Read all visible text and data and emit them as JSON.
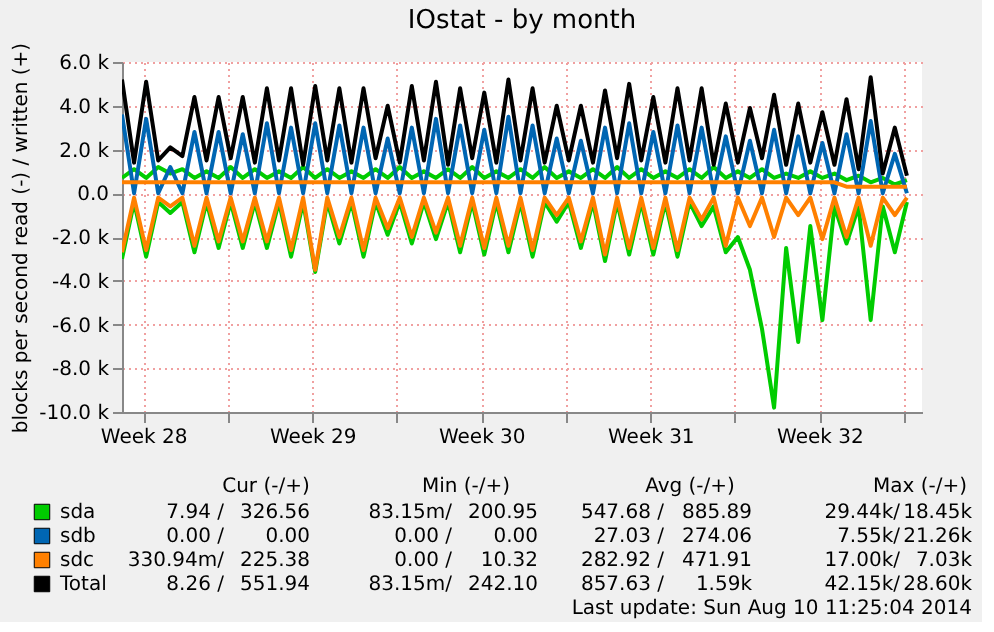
{
  "chart_data": {
    "type": "line",
    "title": "IOstat - by month",
    "ylabel": "blocks per second read (-) / written (+)",
    "x": [
      "2014-07-09T15:00",
      "2014-07-10T03:00",
      "2014-07-10T15:00",
      "2014-07-11T03:00",
      "2014-07-11T15:00",
      "2014-07-12T03:00",
      "2014-07-12T15:00",
      "2014-07-13T03:00",
      "2014-07-13T15:00",
      "2014-07-14T03:00",
      "2014-07-14T15:00",
      "2014-07-15T03:00",
      "2014-07-15T15:00",
      "2014-07-16T03:00",
      "2014-07-16T15:00",
      "2014-07-17T03:00",
      "2014-07-17T15:00",
      "2014-07-18T03:00",
      "2014-07-18T15:00",
      "2014-07-19T03:00",
      "2014-07-19T15:00",
      "2014-07-20T03:00",
      "2014-07-20T15:00",
      "2014-07-21T03:00",
      "2014-07-21T15:00",
      "2014-07-22T03:00",
      "2014-07-22T15:00",
      "2014-07-23T03:00",
      "2014-07-23T15:00",
      "2014-07-24T03:00",
      "2014-07-24T15:00",
      "2014-07-25T03:00",
      "2014-07-25T15:00",
      "2014-07-26T03:00",
      "2014-07-26T15:00",
      "2014-07-27T03:00",
      "2014-07-27T15:00",
      "2014-07-28T03:00",
      "2014-07-28T15:00",
      "2014-07-29T03:00",
      "2014-07-29T15:00",
      "2014-07-30T03:00",
      "2014-07-30T15:00",
      "2014-07-31T03:00",
      "2014-07-31T15:00",
      "2014-08-01T03:00",
      "2014-08-01T15:00",
      "2014-08-02T03:00",
      "2014-08-02T15:00",
      "2014-08-03T03:00",
      "2014-08-03T15:00",
      "2014-08-04T03:00",
      "2014-08-04T15:00",
      "2014-08-05T03:00",
      "2014-08-05T15:00",
      "2014-08-06T03:00",
      "2014-08-06T15:00",
      "2014-08-07T03:00",
      "2014-08-07T15:00",
      "2014-08-08T03:00",
      "2014-08-08T15:00",
      "2014-08-09T03:00",
      "2014-08-09T15:00",
      "2014-08-10T03:00",
      "2014-08-10T15:00",
      "2014-08-11T03:00"
    ],
    "series": [
      {
        "color": "#00cc00",
        "values": [
          -3000,
          -400,
          -2900,
          -400,
          -900,
          -400,
          -2700,
          -400,
          -2500,
          -400,
          -2500,
          -400,
          -2500,
          -400,
          -2900,
          -400,
          -3600,
          -400,
          -2300,
          -400,
          -2900,
          -400,
          -1900,
          -400,
          -2300,
          -400,
          -2100,
          -400,
          -2700,
          -400,
          -2800,
          -400,
          -2700,
          -400,
          -2900,
          -400,
          -1300,
          -400,
          -2500,
          -400,
          -3100,
          -400,
          -2800,
          -400,
          -2800,
          -400,
          -2900,
          -400,
          -1500,
          -600,
          -2700,
          -2000,
          -3500,
          -6200,
          -9800,
          -2500,
          -6800,
          -1500,
          -5800,
          -600,
          -2300,
          -600,
          -5800,
          -600,
          -2700,
          -400
        ]
      },
      {
        "color": "#ff8000",
        "values": [
          -2700,
          -200,
          -2600,
          -200,
          -600,
          -200,
          -2400,
          -200,
          -2200,
          -200,
          -2200,
          -200,
          -2200,
          -200,
          -2600,
          -200,
          -3500,
          -200,
          -2000,
          -200,
          -2600,
          -200,
          -1600,
          -200,
          -2000,
          -200,
          -1800,
          -200,
          -2400,
          -200,
          -2500,
          -200,
          -2400,
          -200,
          -2600,
          -200,
          -1000,
          -200,
          -2200,
          -200,
          -2800,
          -200,
          -2500,
          -200,
          -2500,
          -200,
          -2600,
          -200,
          -1200,
          -200,
          -2400,
          -200,
          -1500,
          -200,
          -2000,
          -200,
          -1000,
          -200,
          -2100,
          -200,
          -2000,
          -200,
          -2400,
          -200,
          -1000,
          -200
        ]
      },
      {
        "name": "sda",
        "color": "#00cc00",
        "values": [
          700,
          1100,
          700,
          1200,
          900,
          1100,
          700,
          1000,
          700,
          1200,
          700,
          1100,
          700,
          1000,
          700,
          1200,
          700,
          1100,
          700,
          1000,
          700,
          1100,
          700,
          1200,
          700,
          1000,
          700,
          1100,
          700,
          1200,
          700,
          1000,
          700,
          1100,
          700,
          1200,
          700,
          1000,
          700,
          1100,
          700,
          1200,
          700,
          1100,
          700,
          1000,
          700,
          1100,
          700,
          1200,
          700,
          1000,
          700,
          1100,
          700,
          900,
          700,
          1000,
          700,
          900,
          600,
          800,
          500,
          700,
          400,
          600
        ]
      },
      {
        "name": "sdb",
        "color": "#0066b3",
        "values": [
          3600,
          0,
          3400,
          0,
          1200,
          0,
          2800,
          0,
          2800,
          0,
          2700,
          0,
          3200,
          0,
          3000,
          0,
          3200,
          0,
          3100,
          0,
          3000,
          0,
          2500,
          0,
          3000,
          0,
          3400,
          0,
          3100,
          0,
          2900,
          0,
          3500,
          0,
          3100,
          0,
          2500,
          0,
          2400,
          0,
          3000,
          0,
          3200,
          0,
          2800,
          0,
          3100,
          0,
          3000,
          0,
          2600,
          0,
          2400,
          0,
          2900,
          0,
          2600,
          0,
          2300,
          0,
          2700,
          0,
          3300,
          0,
          1800,
          0
        ]
      },
      {
        "name": "sdc",
        "color": "#ff8000",
        "values": [
          500,
          500,
          500,
          500,
          500,
          500,
          500,
          500,
          500,
          500,
          500,
          500,
          500,
          500,
          500,
          500,
          500,
          500,
          500,
          500,
          500,
          500,
          500,
          500,
          500,
          500,
          500,
          500,
          500,
          500,
          500,
          500,
          500,
          500,
          500,
          500,
          500,
          500,
          500,
          500,
          500,
          500,
          500,
          500,
          500,
          500,
          500,
          500,
          500,
          500,
          500,
          500,
          500,
          500,
          500,
          500,
          500,
          500,
          500,
          500,
          300,
          300,
          300,
          300,
          300,
          300
        ]
      },
      {
        "name": "Total",
        "color": "#000000",
        "values": [
          5200,
          1400,
          5100,
          1500,
          2100,
          1700,
          4400,
          1500,
          4400,
          1600,
          4400,
          1400,
          4800,
          1500,
          4800,
          1300,
          4900,
          1500,
          4800,
          1400,
          4800,
          1600,
          4000,
          1400,
          4900,
          1500,
          5100,
          1300,
          4800,
          1600,
          4600,
          1400,
          5200,
          1500,
          4800,
          1400,
          4000,
          1500,
          4000,
          1400,
          4700,
          1600,
          5000,
          1500,
          4400,
          1400,
          4800,
          1500,
          4800,
          1300,
          4100,
          1400,
          3900,
          1600,
          4500,
          1300,
          4100,
          1400,
          3700,
          1300,
          4300,
          1100,
          5300,
          900,
          3000,
          800
        ]
      }
    ],
    "xlim": [
      "2014-07-09T15:00",
      "2014-08-11T18:00"
    ],
    "xticks": [
      {
        "value": "2014-07-10T12:00",
        "label": "Week 28"
      },
      {
        "value": "2014-07-14",
        "label": null
      },
      {
        "value": "2014-07-17T12:00",
        "label": "Week 29"
      },
      {
        "value": "2014-07-21",
        "label": null
      },
      {
        "value": "2014-07-24T12:00",
        "label": "Week 30"
      },
      {
        "value": "2014-07-28",
        "label": null
      },
      {
        "value": "2014-07-31T12:00",
        "label": "Week 31"
      },
      {
        "value": "2014-08-04",
        "label": null
      },
      {
        "value": "2014-08-07T12:00",
        "label": "Week 32"
      },
      {
        "value": "2014-08-11",
        "label": null
      }
    ],
    "ylim": [
      -10000,
      6000
    ],
    "yticks": [
      {
        "value": -10000,
        "label": "-10.0 k"
      },
      {
        "value": -8000,
        "label": "-8.0 k"
      },
      {
        "value": -6000,
        "label": "-6.0 k"
      },
      {
        "value": -4000,
        "label": "-4.0 k"
      },
      {
        "value": -2000,
        "label": "-2.0 k"
      },
      {
        "value": 0,
        "label": "0.0"
      },
      {
        "value": 2000,
        "label": "2.0 k"
      },
      {
        "value": 4000,
        "label": "4.0 k"
      },
      {
        "value": 6000,
        "label": "6.0 k"
      }
    ],
    "grid": true,
    "legend": "bottom",
    "marker": "none",
    "line_style": "solid",
    "annotations": [
      "Cur (-/+)",
      "Min (-/+)",
      "Avg (-/+)",
      "Max (-/+)",
      "7.94 /",
      "326.56",
      "83.15m/",
      "200.95",
      "547.68 /",
      "885.89",
      "29.44k/",
      "18.45k",
      "0.00 /",
      "0.00",
      "0.00 /",
      "0.00",
      "27.03 /",
      "274.06",
      "7.55k/",
      "21.26k",
      "330.94m/",
      "225.38",
      "0.00 /",
      "10.32",
      "282.92 /",
      "471.91",
      "17.00k/",
      "7.03k",
      "8.26 /",
      "551.94",
      "83.15m/",
      "242.10",
      "857.63 /",
      "1.59k",
      "42.15k/",
      "28.60k",
      "Last update: Sun Aug 10 11:25:04 2014"
    ]
  }
}
